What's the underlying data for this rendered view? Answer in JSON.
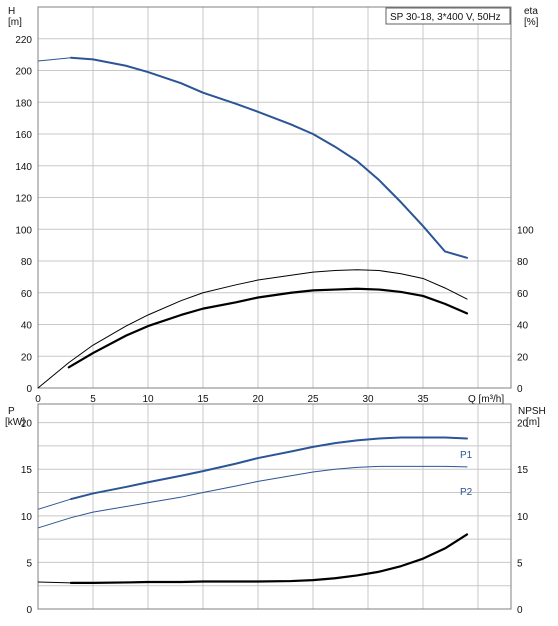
{
  "chart_data": [
    {
      "type": "line",
      "title_box": "SP 30-18, 3*400 V, 50Hz",
      "ylabel_left": "H",
      "ylabel_left_unit": "[m]",
      "ylabel_right": "eta",
      "ylabel_right_unit": "[%]",
      "xlabel": "Q [m³/h]",
      "xlim": [
        0,
        43
      ],
      "ylim_left": [
        0,
        240
      ],
      "ylim_right": [
        0,
        240
      ],
      "x_ticks": [
        0,
        5,
        10,
        15,
        20,
        25,
        30,
        35
      ],
      "y_ticks_left": [
        0,
        20,
        40,
        60,
        80,
        100,
        120,
        140,
        160,
        180,
        200,
        220
      ],
      "y_ticks_right": [
        0,
        20,
        40,
        60,
        80,
        100
      ],
      "grid": true,
      "colors": {
        "head": "#2b5596",
        "efficiency": "#000000",
        "grid": "#c8c8c8"
      },
      "series": [
        {
          "key": "head",
          "x": [
            0,
            3,
            5,
            8,
            10,
            13,
            15,
            18,
            20,
            23,
            25,
            27,
            29,
            31,
            33,
            35,
            37,
            39
          ],
          "values": [
            206,
            208,
            207,
            203,
            199,
            192,
            186,
            179,
            174,
            166,
            160,
            152,
            143,
            131,
            117,
            102,
            86,
            82
          ],
          "partial_until": 2.8
        },
        {
          "key": "eta_total",
          "x": [
            0,
            2.8,
            5,
            8,
            10,
            13,
            15,
            18,
            20,
            23,
            25,
            27,
            29,
            31,
            33,
            35,
            37,
            39
          ],
          "values": [
            0,
            16,
            27,
            39,
            46,
            55,
            60,
            65,
            68,
            71,
            73,
            74,
            74.5,
            74,
            72,
            69,
            63,
            56
          ]
        },
        {
          "key": "eta_pump",
          "x": [
            2.8,
            5,
            8,
            10,
            13,
            15,
            18,
            20,
            23,
            25,
            27,
            29,
            31,
            33,
            35,
            37,
            39
          ],
          "values": [
            13,
            22,
            33,
            39,
            46,
            50,
            54,
            57,
            60,
            61.5,
            62,
            62.5,
            62,
            60.5,
            58,
            53,
            47
          ],
          "partial_from": 0
        }
      ]
    },
    {
      "type": "line",
      "ylabel_left": "P",
      "ylabel_left_unit": "[kW]",
      "ylabel_right": "NPSH",
      "ylabel_right_unit": "[m]",
      "xlim": [
        0,
        43
      ],
      "ylim_left": [
        0,
        22
      ],
      "ylim_right": [
        0,
        22
      ],
      "y_ticks_left": [
        0,
        5,
        10,
        15,
        20
      ],
      "y_ticks_right": [
        0,
        5,
        10,
        15,
        20
      ],
      "grid": true,
      "colors": {
        "p1": "#2b5596",
        "p2": "#2b5596",
        "npsh": "#000000"
      },
      "series": [
        {
          "key": "p1",
          "name": "P1",
          "x": [
            0,
            3,
            5,
            8,
            10,
            13,
            15,
            18,
            20,
            23,
            25,
            27,
            29,
            31,
            33,
            35,
            37,
            39
          ],
          "values": [
            10.7,
            11.8,
            12.4,
            13.1,
            13.6,
            14.3,
            14.8,
            15.6,
            16.2,
            16.9,
            17.4,
            17.8,
            18.1,
            18.3,
            18.4,
            18.4,
            18.4,
            18.3
          ],
          "partial_until": 2.8
        },
        {
          "key": "p2",
          "name": "P2",
          "x": [
            0,
            3,
            5,
            8,
            10,
            13,
            15,
            18,
            20,
            23,
            25,
            27,
            29,
            31,
            33,
            35,
            37,
            39
          ],
          "values": [
            8.7,
            9.8,
            10.4,
            11.0,
            11.4,
            12.0,
            12.5,
            13.2,
            13.7,
            14.3,
            14.7,
            15.0,
            15.2,
            15.3,
            15.3,
            15.3,
            15.3,
            15.25
          ],
          "partial_until": 2.8
        },
        {
          "key": "npsh",
          "x": [
            0,
            3,
            5,
            8,
            10,
            13,
            15,
            18,
            20,
            23,
            25,
            27,
            29,
            31,
            33,
            35,
            37,
            39
          ],
          "values": [
            2.9,
            2.8,
            2.8,
            2.85,
            2.9,
            2.9,
            2.95,
            2.95,
            2.95,
            3.0,
            3.1,
            3.3,
            3.6,
            4.0,
            4.6,
            5.4,
            6.5,
            8.0
          ],
          "partial_until": 2.8
        }
      ]
    }
  ]
}
